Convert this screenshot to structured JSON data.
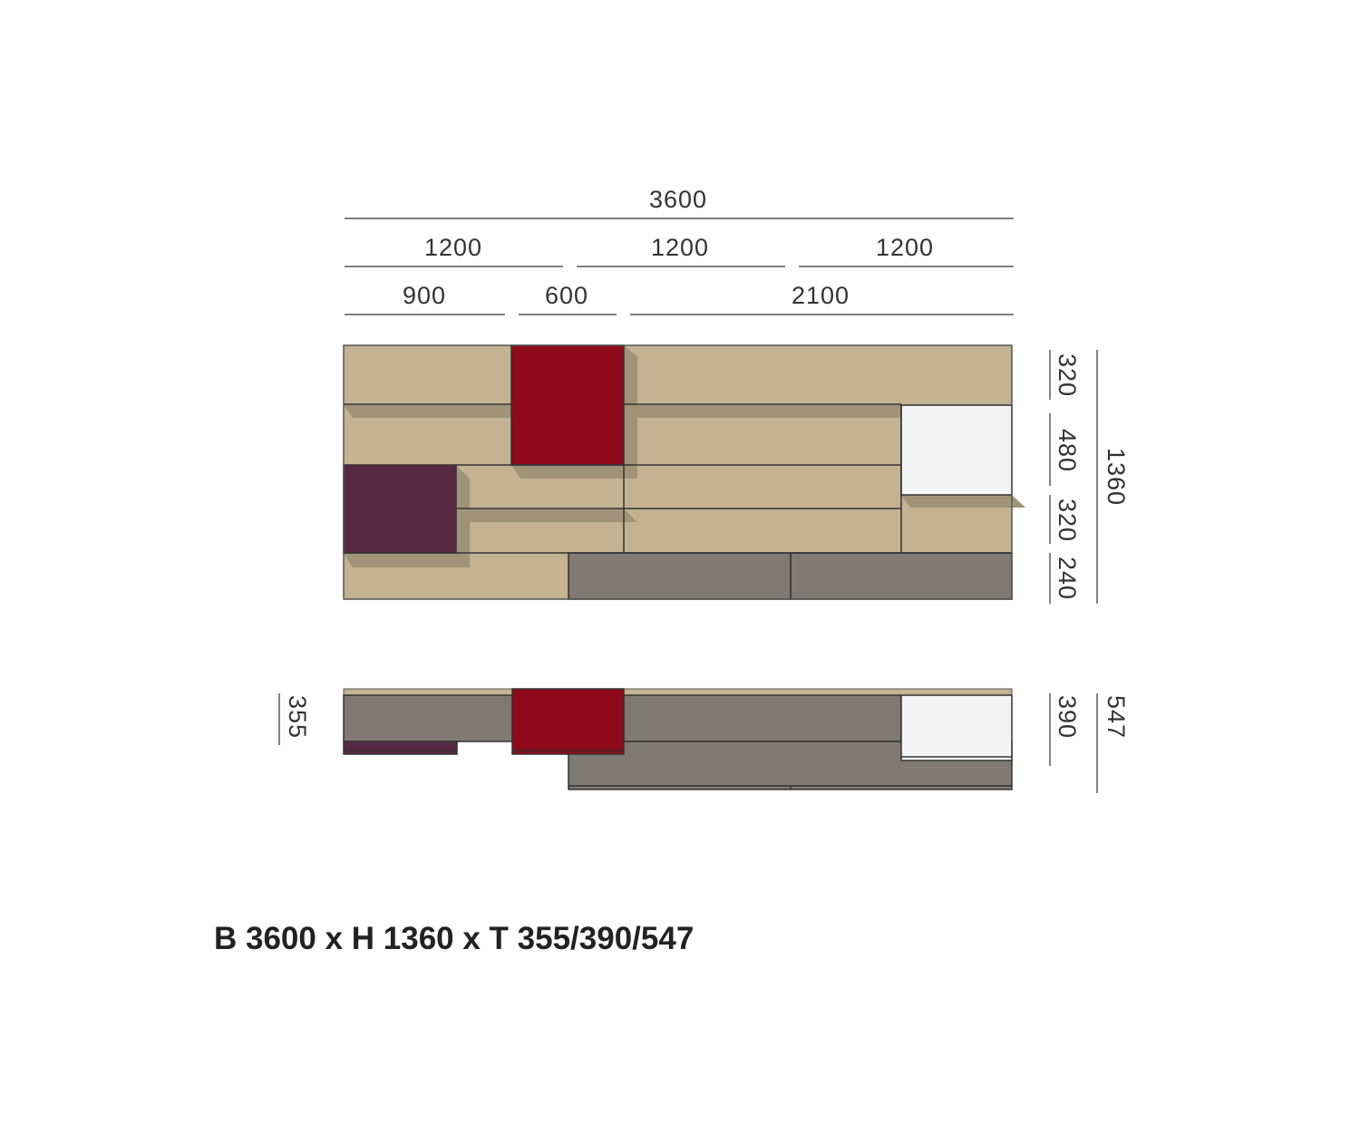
{
  "dimensions": {
    "total_width": "3600",
    "section_widths": [
      "1200",
      "1200",
      "1200"
    ],
    "module_widths": [
      "900",
      "600",
      "2100"
    ],
    "row_heights": [
      "320",
      "480",
      "320",
      "240"
    ],
    "total_height": "1360",
    "depth_left": "355",
    "depth_mid": "390",
    "depth_total": "547"
  },
  "caption": "B 3600 x H 1360 x T 355/390/547",
  "colors": {
    "oak": "#c4b392",
    "shadow": "#a09377",
    "red": "#8f0b1b",
    "aubergine": "#582742",
    "grey": "#7f7a73",
    "white": "#f5f5f5"
  }
}
